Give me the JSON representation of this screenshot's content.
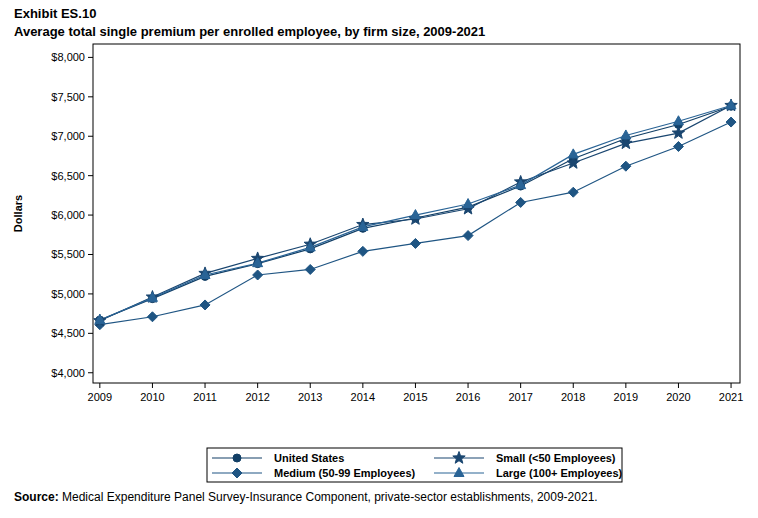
{
  "chart_data": {
    "type": "line",
    "title": "Exhibit ES.10",
    "subtitle": "Average total single premium per enrolled employee, by firm size, 2009-2021",
    "y_label": "Dollars",
    "x": [
      2009,
      2010,
      2011,
      2012,
      2013,
      2014,
      2015,
      2016,
      2017,
      2018,
      2019,
      2020,
      2021
    ],
    "xlim": [
      2008.87,
      2021.17
    ],
    "xticks": [
      2009,
      2010,
      2011,
      2012,
      2013,
      2014,
      2015,
      2016,
      2017,
      2018,
      2019,
      2020,
      2021
    ],
    "ylim": [
      3870,
      8170
    ],
    "yticks": [
      {
        "value": 4000,
        "label": "$4,000"
      },
      {
        "value": 4500,
        "label": "$4,500"
      },
      {
        "value": 5000,
        "label": "$5,000"
      },
      {
        "value": 5500,
        "label": "$5,500"
      },
      {
        "value": 6000,
        "label": "$6,000"
      },
      {
        "value": 6500,
        "label": "$6,500"
      },
      {
        "value": 7000,
        "label": "$7,000"
      },
      {
        "value": 7500,
        "label": "$7,500"
      },
      {
        "value": 8000,
        "label": "$8,000"
      }
    ],
    "grid": false,
    "legend": "bottom",
    "series": [
      {
        "name": "United States",
        "color": "#123f66",
        "marker": "circle",
        "values": [
          4669,
          4940,
          5222,
          5384,
          5571,
          5832,
          5963,
          6101,
          6368,
          6715,
          6972,
          7149,
          7380
        ]
      },
      {
        "name": "Medium (50-99 Employees)",
        "color": "#1f5583",
        "marker": "diamond",
        "values": [
          4610,
          4710,
          4860,
          5240,
          5310,
          5540,
          5640,
          5740,
          6160,
          6290,
          6620,
          6870,
          7180
        ]
      },
      {
        "name": "Small (<50 Employees)",
        "color": "#1a4670",
        "marker": "star",
        "values": [
          4660,
          4960,
          5260,
          5450,
          5630,
          5880,
          5950,
          6080,
          6420,
          6660,
          6910,
          7040,
          7390
        ]
      },
      {
        "name": "Large (100+ Employees)",
        "color": "#2a6496",
        "marker": "triangle",
        "values": [
          4670,
          4950,
          5240,
          5390,
          5590,
          5850,
          6000,
          6140,
          6380,
          6770,
          7010,
          7190,
          7390
        ]
      }
    ],
    "annotations": [
      {
        "label": "Source:",
        "text": " Medical Expenditure Panel Survey-Insurance Component, private-sector establishments, 2009-2021."
      }
    ]
  }
}
